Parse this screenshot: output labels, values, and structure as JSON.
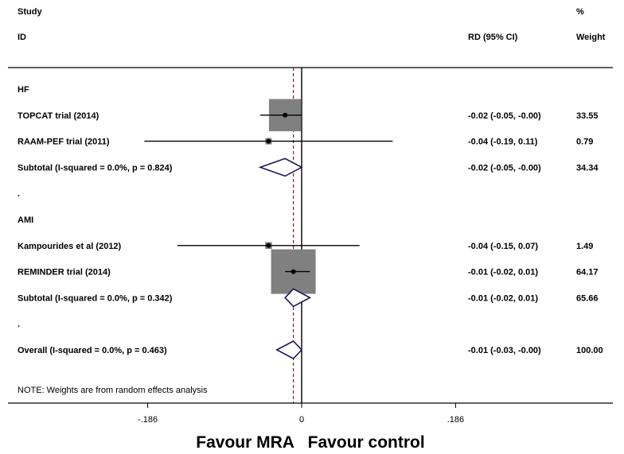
{
  "chart_data": {
    "type": "forest",
    "header": {
      "study_line1": "Study",
      "study_line2": "ID",
      "effect_label": "RD (95% CI)",
      "weight_line1": "%",
      "weight_line2": "Weight"
    },
    "rows": [
      {
        "kind": "group",
        "label": "HF"
      },
      {
        "kind": "study",
        "label": "TOPCAT trial (2014)",
        "est": -0.02,
        "lo": -0.05,
        "hi": -0.0,
        "ci_text": "-0.02 (-0.05, -0.00)",
        "weight": 33.55,
        "weight_text": "33.55"
      },
      {
        "kind": "study",
        "label": "RAAM-PEF trial (2011)",
        "est": -0.04,
        "lo": -0.19,
        "hi": 0.11,
        "ci_text": "-0.04 (-0.19, 0.11)",
        "weight": 0.79,
        "weight_text": "0.79"
      },
      {
        "kind": "subtotal",
        "label": "Subtotal  (I-squared = 0.0%, p = 0.824)",
        "est": -0.02,
        "lo": -0.05,
        "hi": -0.0,
        "ci_text": "-0.02 (-0.05, -0.00)",
        "weight_text": "34.34"
      },
      {
        "kind": "blank",
        "label": "."
      },
      {
        "kind": "group",
        "label": "AMI"
      },
      {
        "kind": "study",
        "label": "Kampourides et al (2012)",
        "est": -0.04,
        "lo": -0.15,
        "hi": 0.07,
        "ci_text": "-0.04 (-0.15, 0.07)",
        "weight": 1.49,
        "weight_text": "1.49"
      },
      {
        "kind": "study",
        "label": "REMINDER trial (2014)",
        "est": -0.01,
        "lo": -0.02,
        "hi": 0.01,
        "ci_text": "-0.01 (-0.02, 0.01)",
        "weight": 64.17,
        "weight_text": "64.17"
      },
      {
        "kind": "subtotal",
        "label": "Subtotal  (I-squared = 0.0%, p = 0.342)",
        "est": -0.01,
        "lo": -0.02,
        "hi": 0.01,
        "ci_text": "-0.01 (-0.02, 0.01)",
        "weight_text": "65.66"
      },
      {
        "kind": "blank",
        "label": "."
      },
      {
        "kind": "overall",
        "label": "Overall  (I-squared = 0.0%, p = 0.463)",
        "est": -0.01,
        "lo": -0.03,
        "hi": -0.0,
        "ci_text": "-0.01 (-0.03, -0.00)",
        "weight_text": "100.00"
      }
    ],
    "note": "NOTE: Weights are from random effects analysis",
    "x_ticks": [
      {
        "value": -0.186,
        "label": "-.186"
      },
      {
        "value": 0,
        "label": "0"
      },
      {
        "value": 0.186,
        "label": ".186"
      }
    ],
    "null_line": 0,
    "overall_line": -0.01,
    "xlabel": "Favour MRA   Favour control",
    "colors": {
      "box": "#808080",
      "diamond": "#1a1a5c",
      "overall_line": "#7a1f1f"
    }
  }
}
